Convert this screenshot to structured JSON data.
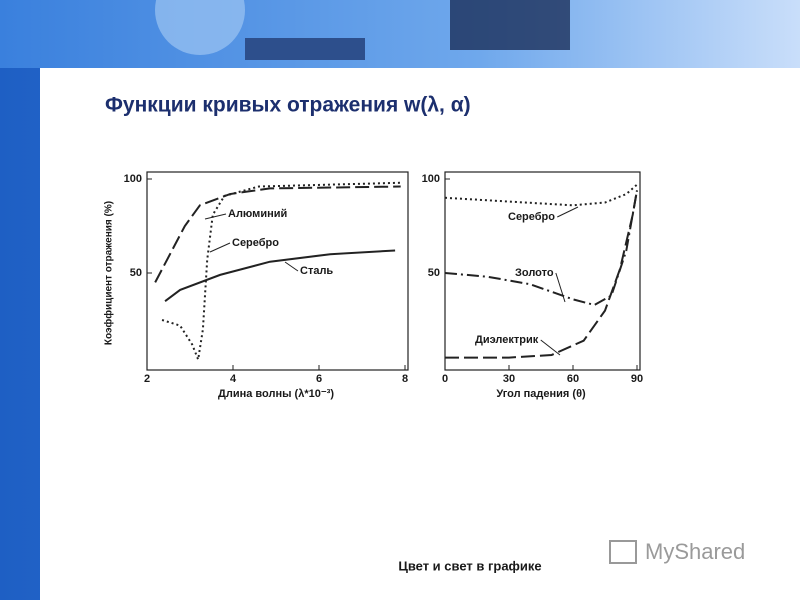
{
  "title": "Функции кривых отражения w(λ, α)",
  "footer": "Цвет и свет в графике",
  "watermark": "MyShared",
  "chart_data": [
    {
      "type": "line",
      "y_label": "Коэффициент отражения (%)",
      "x_label": "Длина волны (λ*10⁻³)",
      "xlim": [
        2,
        8
      ],
      "ylim": [
        0,
        100
      ],
      "xticks": [
        2,
        4,
        6,
        8
      ],
      "yticks": [
        50,
        100
      ],
      "series": [
        {
          "name": "Алюминий",
          "color": "#222222",
          "style": "dashed",
          "x": [
            2.19,
            2.88,
            3.23,
            3.93,
            4.86,
            7.9
          ],
          "values": [
            45,
            75,
            86,
            92,
            95,
            96
          ]
        },
        {
          "name": "Серебро",
          "color": "#222222",
          "style": "dotted",
          "x": [
            2.35,
            2.77,
            3.05,
            3.19,
            3.3,
            3.4,
            3.53,
            3.8,
            4.6,
            7.9
          ],
          "values": [
            25,
            22,
            12,
            4,
            20,
            57,
            81,
            91,
            96,
            98
          ]
        },
        {
          "name": "Сталь",
          "color": "#222222",
          "style": "solid",
          "x": [
            2.42,
            2.77,
            3.7,
            4.86,
            6.26,
            7.77
          ],
          "values": [
            35,
            41,
            49,
            56,
            60,
            62
          ]
        }
      ]
    },
    {
      "type": "line",
      "x_label": "Угол падения (θ)",
      "xlim": [
        0,
        90
      ],
      "ylim": [
        0,
        100
      ],
      "xticks": [
        0,
        30,
        60,
        90
      ],
      "yticks": [
        50,
        100
      ],
      "series": [
        {
          "name": "Серебро",
          "color": "#222222",
          "style": "dotted",
          "x": [
            0,
            30,
            60,
            75,
            85,
            90
          ],
          "values": [
            90,
            88,
            86,
            87.5,
            92,
            97
          ]
        },
        {
          "name": "Золото",
          "color": "#222222",
          "style": "dashdot",
          "x": [
            0,
            20,
            40,
            60,
            70,
            78,
            85,
            90
          ],
          "values": [
            50,
            48,
            44,
            36,
            33,
            38,
            62,
            94
          ]
        },
        {
          "name": "Диэлектрик",
          "color": "#222222",
          "style": "dashed",
          "x": [
            0,
            30,
            50,
            65,
            75,
            82,
            88,
            90
          ],
          "values": [
            5,
            5,
            6.4,
            14,
            30,
            52,
            81,
            94
          ]
        }
      ]
    }
  ]
}
